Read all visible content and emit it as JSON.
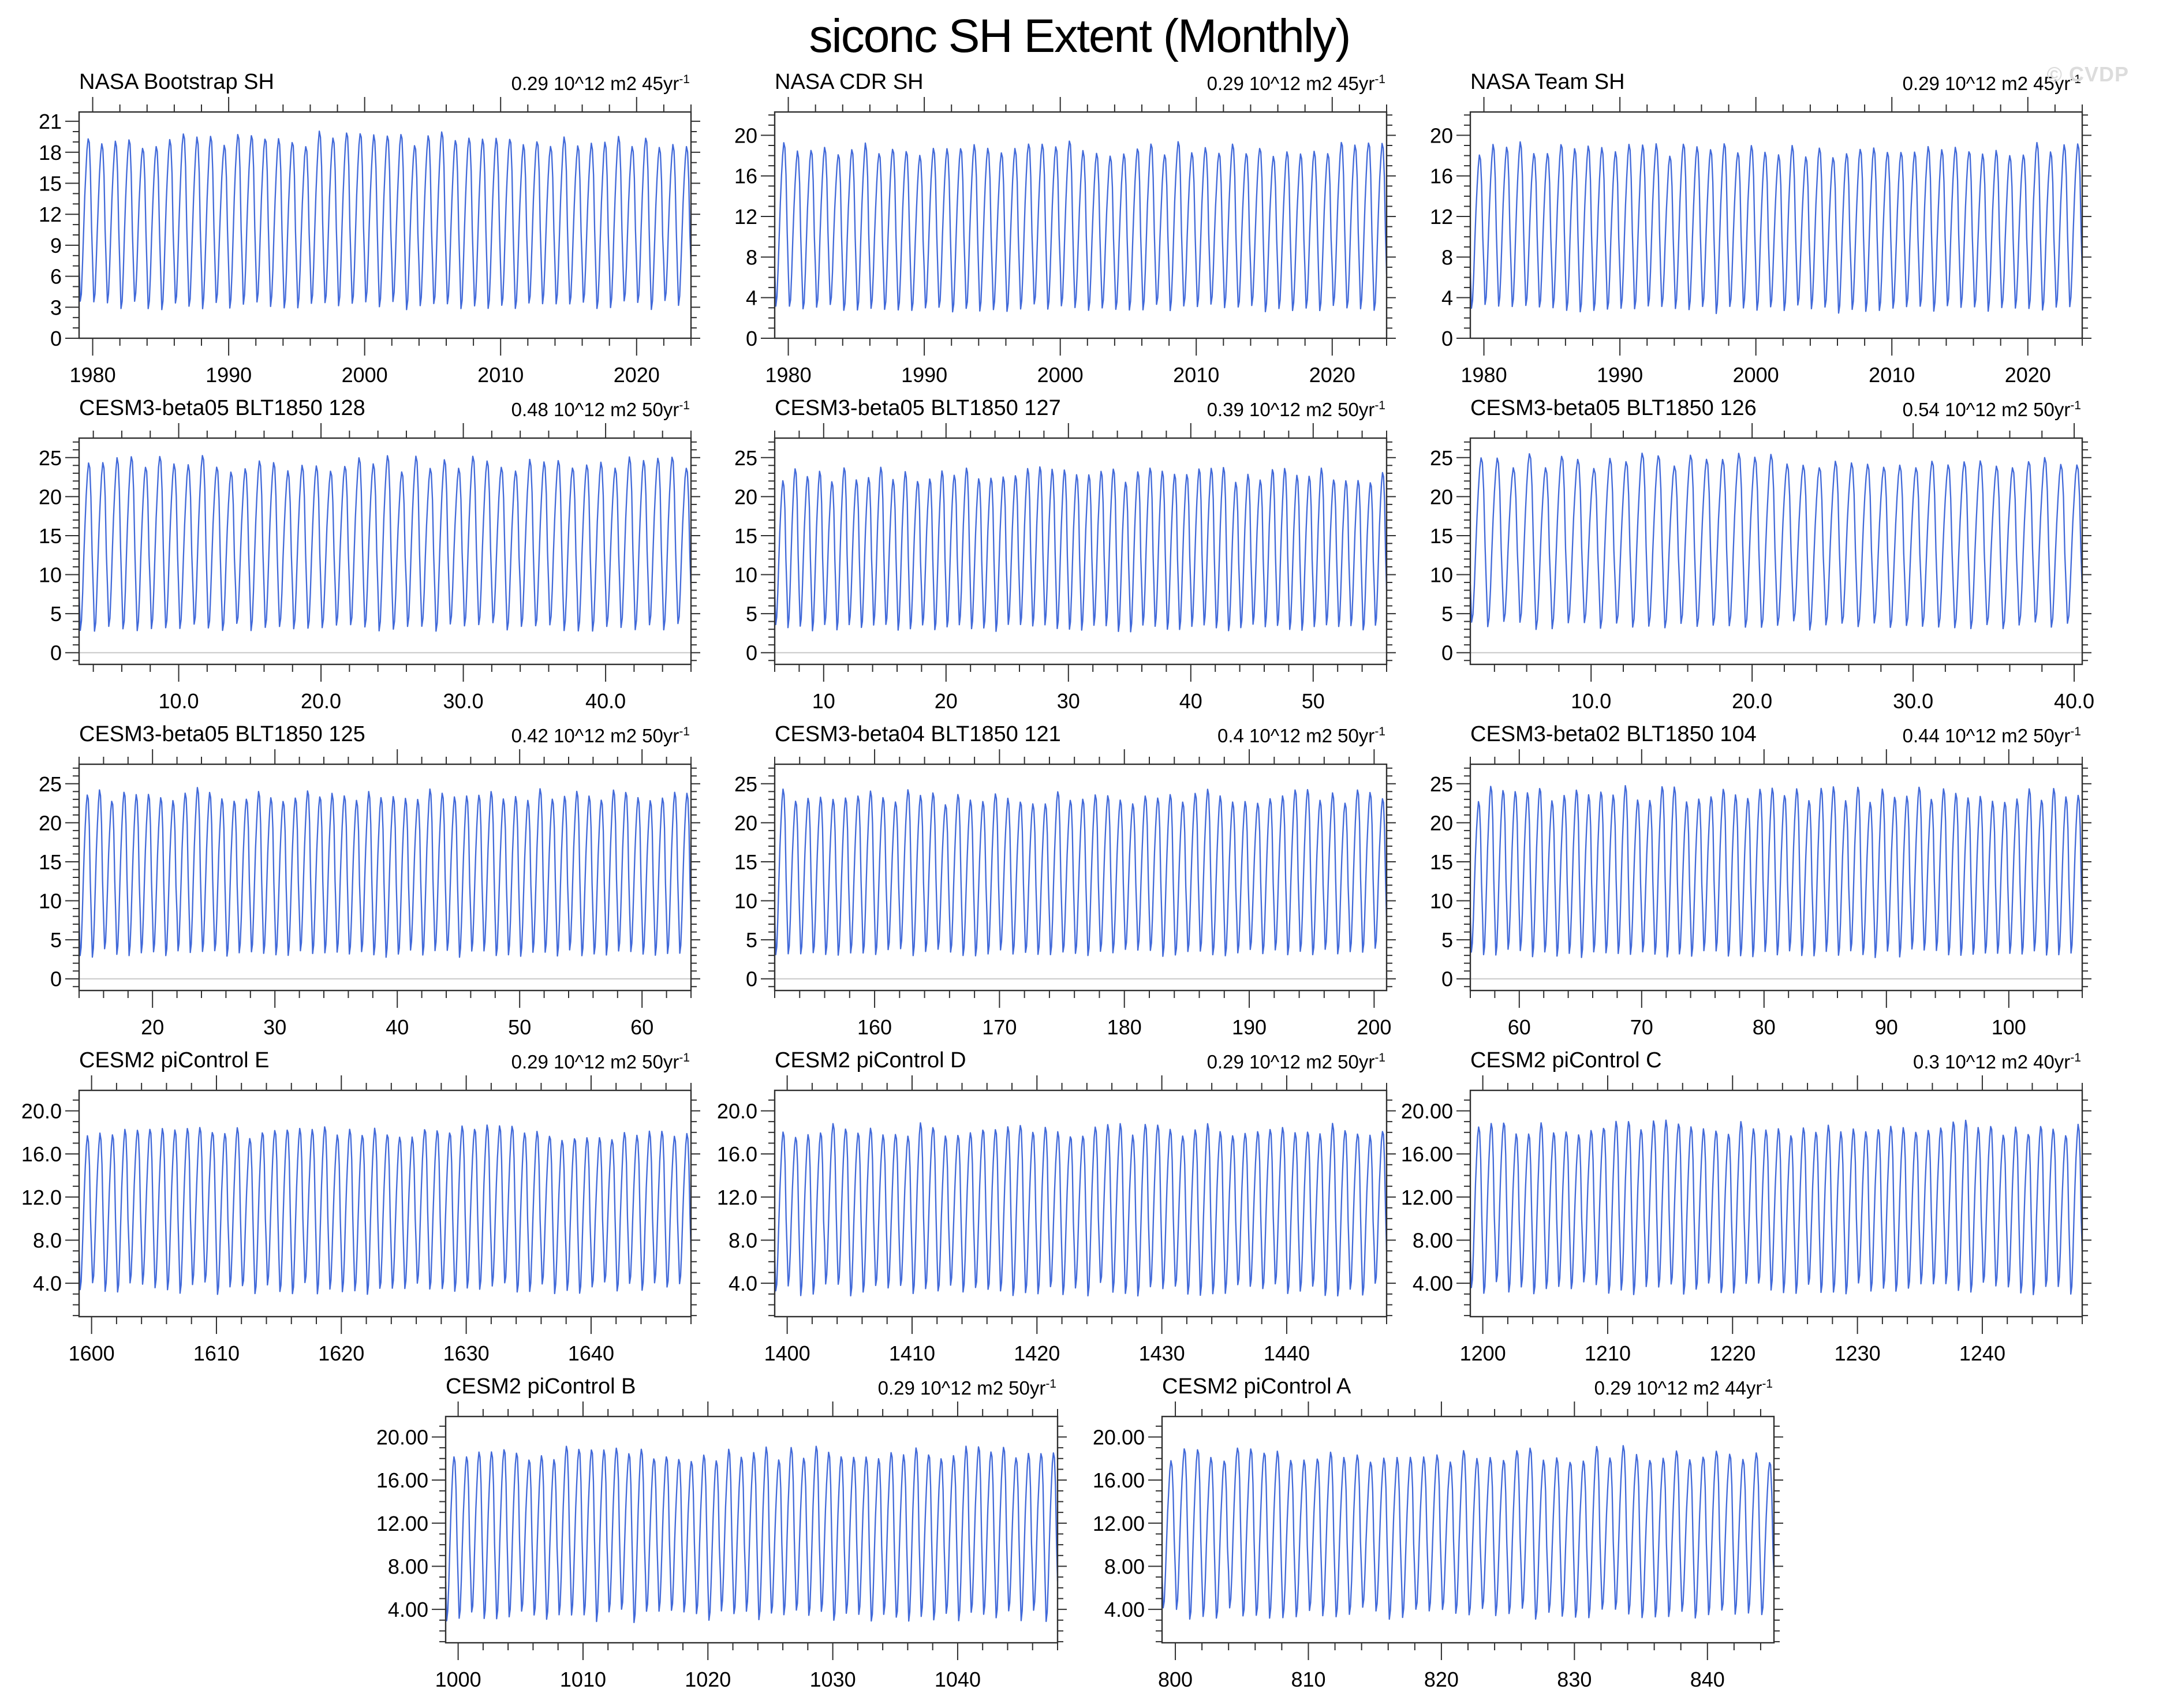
{
  "page": {
    "title": "siconc SH Extent (Monthly)",
    "watermark": "© CVDP"
  },
  "colors": {
    "line": "#4169d9",
    "frame": "#2f2f2f",
    "zero_line": "#c8c8c8",
    "watermark": "#dcdcdc",
    "text": "#000000"
  },
  "layout_rows": [
    [
      0,
      1,
      2
    ],
    [
      3,
      4,
      5
    ],
    [
      6,
      7,
      8
    ],
    [
      9,
      10,
      11
    ],
    [
      12,
      13
    ]
  ],
  "monthly_profile": [
    0.23,
    0.0,
    0.05,
    0.22,
    0.44,
    0.64,
    0.8,
    0.93,
    1.0,
    0.97,
    0.8,
    0.46
  ],
  "chart_data": [
    {
      "type": "line",
      "title": "NASA Bootstrap SH",
      "trend": "0.29 10^12 m2 45yr",
      "trend_sup": "-1",
      "x_start": 1979,
      "x_end": 2024,
      "x_majors": [
        1980,
        1990,
        2000,
        2010,
        2020
      ],
      "x_minor_step": 2,
      "x_format": "int",
      "y_min": 0,
      "y_max": 21.9,
      "y_majors": [
        0,
        3,
        6,
        9,
        12,
        15,
        18,
        21
      ],
      "y_minor_step": 1,
      "y_format": "int",
      "zero_line": false,
      "series": {
        "units": "10^12 m2",
        "seasonal_min": 3.2,
        "seasonal_max": 19.2,
        "peak_jitter": 0.8,
        "min_jitter": 0.4,
        "seed": 11
      }
    },
    {
      "type": "line",
      "title": "NASA CDR SH",
      "trend": "0.29 10^12 m2 45yr",
      "trend_sup": "-1",
      "x_start": 1979,
      "x_end": 2024,
      "x_majors": [
        1980,
        1990,
        2000,
        2010,
        2020
      ],
      "x_minor_step": 2,
      "x_format": "int",
      "y_min": 0,
      "y_max": 22.3,
      "y_majors": [
        0,
        4,
        8,
        12,
        16,
        20
      ],
      "y_minor_step": 1,
      "y_format": "int",
      "zero_line": false,
      "series": {
        "units": "10^12 m2",
        "seasonal_min": 3.0,
        "seasonal_max": 18.7,
        "peak_jitter": 0.8,
        "min_jitter": 0.4,
        "seed": 22
      }
    },
    {
      "type": "line",
      "title": "NASA Team SH",
      "trend": "0.29 10^12 m2 45yr",
      "trend_sup": "-1",
      "x_start": 1979,
      "x_end": 2024,
      "x_majors": [
        1980,
        1990,
        2000,
        2010,
        2020
      ],
      "x_minor_step": 2,
      "x_format": "int",
      "y_min": 0,
      "y_max": 22.3,
      "y_majors": [
        0,
        4,
        8,
        12,
        16,
        20
      ],
      "y_minor_step": 1,
      "y_format": "int",
      "zero_line": false,
      "series": {
        "units": "10^12 m2",
        "seasonal_min": 2.9,
        "seasonal_max": 18.5,
        "peak_jitter": 0.8,
        "min_jitter": 0.4,
        "seed": 33
      }
    },
    {
      "type": "line",
      "title": "CESM3-beta05 BLT1850 128",
      "trend": "0.48 10^12 m2 50yr",
      "trend_sup": "-1",
      "x_start": 3,
      "x_end": 46,
      "x_majors": [
        10,
        20,
        30,
        40
      ],
      "x_minor_step": 2,
      "x_format": "one_decimal",
      "y_min": -1.5,
      "y_max": 27.5,
      "y_majors": [
        0,
        5,
        10,
        15,
        20,
        25
      ],
      "y_minor_step": 1,
      "y_format": "int",
      "zero_line": true,
      "series": {
        "units": "10^12 m2",
        "seasonal_min": 3.3,
        "seasonal_max": 24.2,
        "peak_jitter": 1.1,
        "min_jitter": 0.5,
        "seed": 44
      }
    },
    {
      "type": "line",
      "title": "CESM3-beta05 BLT1850 127",
      "trend": "0.39 10^12 m2 50yr",
      "trend_sup": "-1",
      "x_start": 6,
      "x_end": 56,
      "x_majors": [
        10,
        20,
        30,
        40,
        50
      ],
      "x_minor_step": 2,
      "x_format": "int",
      "y_min": -1.5,
      "y_max": 27.5,
      "y_majors": [
        0,
        5,
        10,
        15,
        20,
        25
      ],
      "y_minor_step": 1,
      "y_format": "int",
      "zero_line": true,
      "series": {
        "units": "10^12 m2",
        "seasonal_min": 3.2,
        "seasonal_max": 22.8,
        "peak_jitter": 1.0,
        "min_jitter": 0.5,
        "seed": 55
      }
    },
    {
      "type": "line",
      "title": "CESM3-beta05 BLT1850 126",
      "trend": "0.54 10^12 m2 50yr",
      "trend_sup": "-1",
      "x_start": 2.5,
      "x_end": 40.5,
      "x_majors": [
        10,
        20,
        30,
        40
      ],
      "x_minor_step": 2,
      "x_format": "one_decimal",
      "y_min": -1.5,
      "y_max": 27.5,
      "y_majors": [
        0,
        5,
        10,
        15,
        20,
        25
      ],
      "y_minor_step": 1,
      "y_format": "int",
      "zero_line": true,
      "series": {
        "units": "10^12 m2",
        "seasonal_min": 3.5,
        "seasonal_max": 24.6,
        "peak_jitter": 1.0,
        "min_jitter": 0.5,
        "seed": 66
      }
    },
    {
      "type": "line",
      "title": "CESM3-beta05 BLT1850 125",
      "trend": "0.42 10^12 m2 50yr",
      "trend_sup": "-1",
      "x_start": 14,
      "x_end": 64,
      "x_majors": [
        20,
        30,
        40,
        50,
        60
      ],
      "x_minor_step": 2,
      "x_format": "int",
      "y_min": -1.5,
      "y_max": 27.5,
      "y_majors": [
        0,
        5,
        10,
        15,
        20,
        25
      ],
      "y_minor_step": 1,
      "y_format": "int",
      "zero_line": true,
      "series": {
        "units": "10^12 m2",
        "seasonal_min": 3.3,
        "seasonal_max": 23.6,
        "peak_jitter": 0.9,
        "min_jitter": 0.5,
        "seed": 77
      }
    },
    {
      "type": "line",
      "title": "CESM3-beta04 BLT1850 121",
      "trend": "0.4 10^12 m2 50yr",
      "trend_sup": "-1",
      "x_start": 152,
      "x_end": 201,
      "x_majors": [
        160,
        170,
        180,
        190,
        200
      ],
      "x_minor_step": 2,
      "x_format": "int",
      "y_min": -1.5,
      "y_max": 27.5,
      "y_majors": [
        0,
        5,
        10,
        15,
        20,
        25
      ],
      "y_minor_step": 1,
      "y_format": "int",
      "zero_line": true,
      "series": {
        "units": "10^12 m2",
        "seasonal_min": 3.4,
        "seasonal_max": 23.3,
        "peak_jitter": 1.0,
        "min_jitter": 0.5,
        "seed": 88
      }
    },
    {
      "type": "line",
      "title": "CESM3-beta02 BLT1850 104",
      "trend": "0.44 10^12 m2 50yr",
      "trend_sup": "-1",
      "x_start": 56,
      "x_end": 106,
      "x_majors": [
        60,
        70,
        80,
        90,
        100
      ],
      "x_minor_step": 2,
      "x_format": "int",
      "y_min": -1.5,
      "y_max": 27.5,
      "y_majors": [
        0,
        5,
        10,
        15,
        20,
        25
      ],
      "y_minor_step": 1,
      "y_format": "int",
      "zero_line": true,
      "series": {
        "units": "10^12 m2",
        "seasonal_min": 3.3,
        "seasonal_max": 23.6,
        "peak_jitter": 1.1,
        "min_jitter": 0.5,
        "seed": 99
      }
    },
    {
      "type": "line",
      "title": "CESM2 piControl E",
      "trend": "0.29 10^12 m2 50yr",
      "trend_sup": "-1",
      "x_start": 1599,
      "x_end": 1648,
      "x_majors": [
        1600,
        1610,
        1620,
        1630,
        1640
      ],
      "x_minor_step": 2,
      "x_format": "int",
      "y_min": 0.9,
      "y_max": 21.9,
      "y_majors": [
        4,
        8,
        12,
        16,
        20
      ],
      "y_minor_step": 1,
      "y_format": "one_decimal",
      "zero_line": false,
      "series": {
        "units": "10^12 m2",
        "seasonal_min": 3.5,
        "seasonal_max": 18.0,
        "peak_jitter": 0.7,
        "min_jitter": 0.6,
        "seed": 110
      }
    },
    {
      "type": "line",
      "title": "CESM2 piControl D",
      "trend": "0.29 10^12 m2 50yr",
      "trend_sup": "-1",
      "x_start": 1399,
      "x_end": 1448,
      "x_majors": [
        1400,
        1410,
        1420,
        1430,
        1440
      ],
      "x_minor_step": 2,
      "x_format": "int",
      "y_min": 0.9,
      "y_max": 21.9,
      "y_majors": [
        4,
        8,
        12,
        16,
        20
      ],
      "y_minor_step": 1,
      "y_format": "one_decimal",
      "zero_line": false,
      "series": {
        "units": "10^12 m2",
        "seasonal_min": 3.4,
        "seasonal_max": 18.2,
        "peak_jitter": 0.7,
        "min_jitter": 0.6,
        "seed": 121
      }
    },
    {
      "type": "line",
      "title": "CESM2 piControl C",
      "trend": "0.3 10^12 m2 40yr",
      "trend_sup": "-1",
      "x_start": 1199,
      "x_end": 1248,
      "x_majors": [
        1200,
        1210,
        1220,
        1230,
        1240
      ],
      "x_minor_step": 2,
      "x_format": "int",
      "y_min": 0.9,
      "y_max": 21.9,
      "y_majors": [
        4,
        8,
        12,
        16,
        20
      ],
      "y_minor_step": 1,
      "y_format": "two_decimal",
      "zero_line": false,
      "series": {
        "units": "10^12 m2",
        "seasonal_min": 3.5,
        "seasonal_max": 18.4,
        "peak_jitter": 0.7,
        "min_jitter": 0.6,
        "seed": 132
      }
    },
    {
      "type": "line",
      "title": "CESM2 piControl B",
      "trend": "0.29 10^12 m2 50yr",
      "trend_sup": "-1",
      "x_start": 999,
      "x_end": 1048,
      "x_majors": [
        1000,
        1010,
        1020,
        1030,
        1040
      ],
      "x_minor_step": 2,
      "x_format": "int",
      "y_min": 0.9,
      "y_max": 21.9,
      "y_majors": [
        4,
        8,
        12,
        16,
        20
      ],
      "y_minor_step": 1,
      "y_format": "two_decimal",
      "zero_line": false,
      "series": {
        "units": "10^12 m2",
        "seasonal_min": 3.4,
        "seasonal_max": 18.4,
        "peak_jitter": 0.7,
        "min_jitter": 0.6,
        "seed": 143
      }
    },
    {
      "type": "line",
      "title": "CESM2 piControl A",
      "trend": "0.29 10^12 m2 44yr",
      "trend_sup": "-1",
      "x_start": 799,
      "x_end": 845,
      "x_majors": [
        800,
        810,
        820,
        830,
        840
      ],
      "x_minor_step": 2,
      "x_format": "int",
      "y_min": 0.9,
      "y_max": 21.9,
      "y_majors": [
        4,
        8,
        12,
        16,
        20
      ],
      "y_minor_step": 1,
      "y_format": "two_decimal",
      "zero_line": false,
      "series": {
        "units": "10^12 m2",
        "seasonal_min": 3.6,
        "seasonal_max": 18.4,
        "peak_jitter": 0.7,
        "min_jitter": 0.6,
        "seed": 154
      }
    }
  ]
}
